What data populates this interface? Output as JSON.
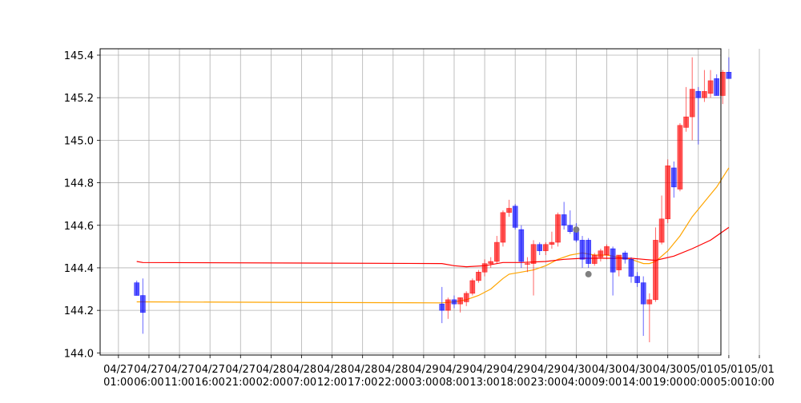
{
  "chart_data": {
    "type": "candlestick",
    "title": "",
    "xlabel": "",
    "ylabel": "",
    "ylim": [
      143.99,
      145.43
    ],
    "yticks": [
      "144.0",
      "144.2",
      "144.4",
      "144.6",
      "144.8",
      "145.0",
      "145.2",
      "145.4"
    ],
    "ytick_values": [
      144.0,
      144.2,
      144.4,
      144.6,
      144.8,
      145.0,
      145.2,
      145.4
    ],
    "xlim": [
      -3.0,
      98.7
    ],
    "xticks": [
      {
        "x": 0,
        "date": "04/27",
        "time": "01:00"
      },
      {
        "x": 5,
        "date": "04/27",
        "time": "06:00"
      },
      {
        "x": 10,
        "date": "04/27",
        "time": "11:00"
      },
      {
        "x": 15,
        "date": "04/27",
        "time": "16:00"
      },
      {
        "x": 20,
        "date": "04/27",
        "time": "21:00"
      },
      {
        "x": 25,
        "date": "04/28",
        "time": "02:00"
      },
      {
        "x": 30,
        "date": "04/28",
        "time": "07:00"
      },
      {
        "x": 35,
        "date": "04/28",
        "time": "12:00"
      },
      {
        "x": 40,
        "date": "04/28",
        "time": "17:00"
      },
      {
        "x": 45,
        "date": "04/28",
        "time": "22:00"
      },
      {
        "x": 50,
        "date": "04/29",
        "time": "03:00"
      },
      {
        "x": 55,
        "date": "04/29",
        "time": "08:00"
      },
      {
        "x": 60,
        "date": "04/29",
        "time": "13:00"
      },
      {
        "x": 65,
        "date": "04/29",
        "time": "18:00"
      },
      {
        "x": 70,
        "date": "04/29",
        "time": "23:00"
      },
      {
        "x": 75,
        "date": "04/30",
        "time": "04:00"
      },
      {
        "x": 80,
        "date": "04/30",
        "time": "09:00"
      },
      {
        "x": 85,
        "date": "04/30",
        "time": "14:00"
      },
      {
        "x": 90,
        "date": "04/30",
        "time": "19:00"
      },
      {
        "x": 95,
        "date": "05/01",
        "time": "00:00"
      },
      {
        "x": 100,
        "date": "05/01",
        "time": "05:00"
      },
      {
        "x": 105,
        "date": "05/01",
        "time": "10:00"
      }
    ],
    "grid": true,
    "up_color": "#ff0000",
    "down_color": "#0000ff",
    "candles": [
      {
        "x": 3,
        "o": 144.33,
        "h": 144.34,
        "l": 144.27,
        "c": 144.27
      },
      {
        "x": 4,
        "o": 144.27,
        "h": 144.35,
        "l": 144.09,
        "c": 144.19
      },
      {
        "x": 53,
        "o": 144.23,
        "h": 144.31,
        "l": 144.14,
        "c": 144.2
      },
      {
        "x": 54,
        "o": 144.2,
        "h": 144.26,
        "l": 144.16,
        "c": 144.25
      },
      {
        "x": 55,
        "o": 144.25,
        "h": 144.27,
        "l": 144.21,
        "c": 144.23
      },
      {
        "x": 56,
        "o": 144.23,
        "h": 144.26,
        "l": 144.19,
        "c": 144.26
      },
      {
        "x": 57,
        "o": 144.24,
        "h": 144.29,
        "l": 144.22,
        "c": 144.28
      },
      {
        "x": 58,
        "o": 144.28,
        "h": 144.35,
        "l": 144.27,
        "c": 144.34
      },
      {
        "x": 59,
        "o": 144.34,
        "h": 144.39,
        "l": 144.33,
        "c": 144.38
      },
      {
        "x": 60,
        "o": 144.38,
        "h": 144.44,
        "l": 144.36,
        "c": 144.42
      },
      {
        "x": 61,
        "o": 144.42,
        "h": 144.45,
        "l": 144.4,
        "c": 144.43
      },
      {
        "x": 62,
        "o": 144.43,
        "h": 144.55,
        "l": 144.42,
        "c": 144.52
      },
      {
        "x": 63,
        "o": 144.52,
        "h": 144.67,
        "l": 144.5,
        "c": 144.66
      },
      {
        "x": 64,
        "o": 144.66,
        "h": 144.72,
        "l": 144.64,
        "c": 144.68
      },
      {
        "x": 65,
        "o": 144.69,
        "h": 144.7,
        "l": 144.58,
        "c": 144.59
      },
      {
        "x": 66,
        "o": 144.58,
        "h": 144.6,
        "l": 144.4,
        "c": 144.43
      },
      {
        "x": 67,
        "o": 144.42,
        "h": 144.45,
        "l": 144.38,
        "c": 144.42
      },
      {
        "x": 68,
        "o": 144.42,
        "h": 144.53,
        "l": 144.27,
        "c": 144.51
      },
      {
        "x": 69,
        "o": 144.51,
        "h": 144.52,
        "l": 144.46,
        "c": 144.48
      },
      {
        "x": 70,
        "o": 144.48,
        "h": 144.52,
        "l": 144.46,
        "c": 144.51
      },
      {
        "x": 71,
        "o": 144.51,
        "h": 144.57,
        "l": 144.49,
        "c": 144.52
      },
      {
        "x": 72,
        "o": 144.52,
        "h": 144.66,
        "l": 144.5,
        "c": 144.65
      },
      {
        "x": 73,
        "o": 144.65,
        "h": 144.71,
        "l": 144.58,
        "c": 144.6
      },
      {
        "x": 74,
        "o": 144.6,
        "h": 144.67,
        "l": 144.56,
        "c": 144.57
      },
      {
        "x": 75,
        "o": 144.58,
        "h": 144.61,
        "l": 144.52,
        "c": 144.53
      },
      {
        "x": 76,
        "o": 144.53,
        "h": 144.55,
        "l": 144.4,
        "c": 144.44
      },
      {
        "x": 77,
        "o": 144.53,
        "h": 144.54,
        "l": 144.4,
        "c": 144.42
      },
      {
        "x": 78,
        "o": 144.42,
        "h": 144.47,
        "l": 144.41,
        "c": 144.46
      },
      {
        "x": 79,
        "o": 144.45,
        "h": 144.49,
        "l": 144.43,
        "c": 144.48
      },
      {
        "x": 80,
        "o": 144.46,
        "h": 144.51,
        "l": 144.44,
        "c": 144.5
      },
      {
        "x": 81,
        "o": 144.49,
        "h": 144.5,
        "l": 144.27,
        "c": 144.38
      },
      {
        "x": 82,
        "o": 144.39,
        "h": 144.46,
        "l": 144.36,
        "c": 144.46
      },
      {
        "x": 83,
        "o": 144.47,
        "h": 144.48,
        "l": 144.42,
        "c": 144.44
      },
      {
        "x": 84,
        "o": 144.44,
        "h": 144.45,
        "l": 144.33,
        "c": 144.36
      },
      {
        "x": 85,
        "o": 144.36,
        "h": 144.38,
        "l": 144.31,
        "c": 144.33
      },
      {
        "x": 86,
        "o": 144.33,
        "h": 144.36,
        "l": 144.08,
        "c": 144.23
      },
      {
        "x": 87,
        "o": 144.23,
        "h": 144.28,
        "l": 144.05,
        "c": 144.25
      },
      {
        "x": 88,
        "o": 144.25,
        "h": 144.59,
        "l": 144.24,
        "c": 144.53
      },
      {
        "x": 89,
        "o": 144.52,
        "h": 144.74,
        "l": 144.51,
        "c": 144.63
      },
      {
        "x": 90,
        "o": 144.63,
        "h": 144.91,
        "l": 144.61,
        "c": 144.88
      },
      {
        "x": 91,
        "o": 144.87,
        "h": 144.9,
        "l": 144.73,
        "c": 144.78
      },
      {
        "x": 92,
        "o": 144.77,
        "h": 145.08,
        "l": 144.76,
        "c": 145.07
      },
      {
        "x": 93,
        "o": 145.06,
        "h": 145.25,
        "l": 145.04,
        "c": 145.11
      },
      {
        "x": 94,
        "o": 145.11,
        "h": 145.39,
        "l": 145.0,
        "c": 145.24
      },
      {
        "x": 95,
        "o": 145.23,
        "h": 145.25,
        "l": 144.98,
        "c": 145.2
      },
      {
        "x": 96,
        "o": 145.2,
        "h": 145.33,
        "l": 145.18,
        "c": 145.23
      },
      {
        "x": 97,
        "o": 145.22,
        "h": 145.33,
        "l": 145.2,
        "c": 145.28
      },
      {
        "x": 98,
        "o": 145.29,
        "h": 145.31,
        "l": 145.21,
        "c": 145.21
      },
      {
        "x": 99,
        "o": 145.21,
        "h": 145.33,
        "l": 145.17,
        "c": 145.32
      },
      {
        "x": 100,
        "o": 145.32,
        "h": 145.39,
        "l": 145.29,
        "c": 145.29
      }
    ],
    "series": [
      {
        "color": "#ffa500",
        "points": [
          [
            3,
            144.24
          ],
          [
            53,
            144.235
          ],
          [
            55,
            144.24
          ],
          [
            57,
            144.25
          ],
          [
            59,
            144.27
          ],
          [
            61,
            144.3
          ],
          [
            63,
            144.35
          ],
          [
            64,
            144.37
          ],
          [
            66,
            144.38
          ],
          [
            68,
            144.39
          ],
          [
            70,
            144.41
          ],
          [
            72,
            144.44
          ],
          [
            74,
            144.46
          ],
          [
            76,
            144.47
          ],
          [
            78,
            144.46
          ],
          [
            80,
            144.46
          ],
          [
            82,
            144.45
          ],
          [
            84,
            144.44
          ],
          [
            86,
            144.42
          ],
          [
            87,
            144.42
          ],
          [
            88,
            144.43
          ],
          [
            90,
            144.48
          ],
          [
            92,
            144.55
          ],
          [
            94,
            144.64
          ],
          [
            96,
            144.71
          ],
          [
            98,
            144.78
          ],
          [
            100,
            144.87
          ]
        ]
      },
      {
        "color": "#ff0000",
        "points": [
          [
            3,
            144.43
          ],
          [
            4,
            144.425
          ],
          [
            53,
            144.42
          ],
          [
            55,
            144.41
          ],
          [
            57,
            144.405
          ],
          [
            60,
            144.41
          ],
          [
            63,
            144.425
          ],
          [
            66,
            144.425
          ],
          [
            70,
            144.43
          ],
          [
            73,
            144.44
          ],
          [
            76,
            144.445
          ],
          [
            80,
            144.445
          ],
          [
            84,
            144.445
          ],
          [
            86,
            144.44
          ],
          [
            88,
            144.435
          ],
          [
            91,
            144.455
          ],
          [
            94,
            144.49
          ],
          [
            97,
            144.53
          ],
          [
            100,
            144.59
          ]
        ]
      }
    ],
    "markers": [
      {
        "x": 75,
        "y": 144.58,
        "color": "#808080"
      },
      {
        "x": 77,
        "y": 144.37,
        "color": "#808080"
      }
    ]
  }
}
